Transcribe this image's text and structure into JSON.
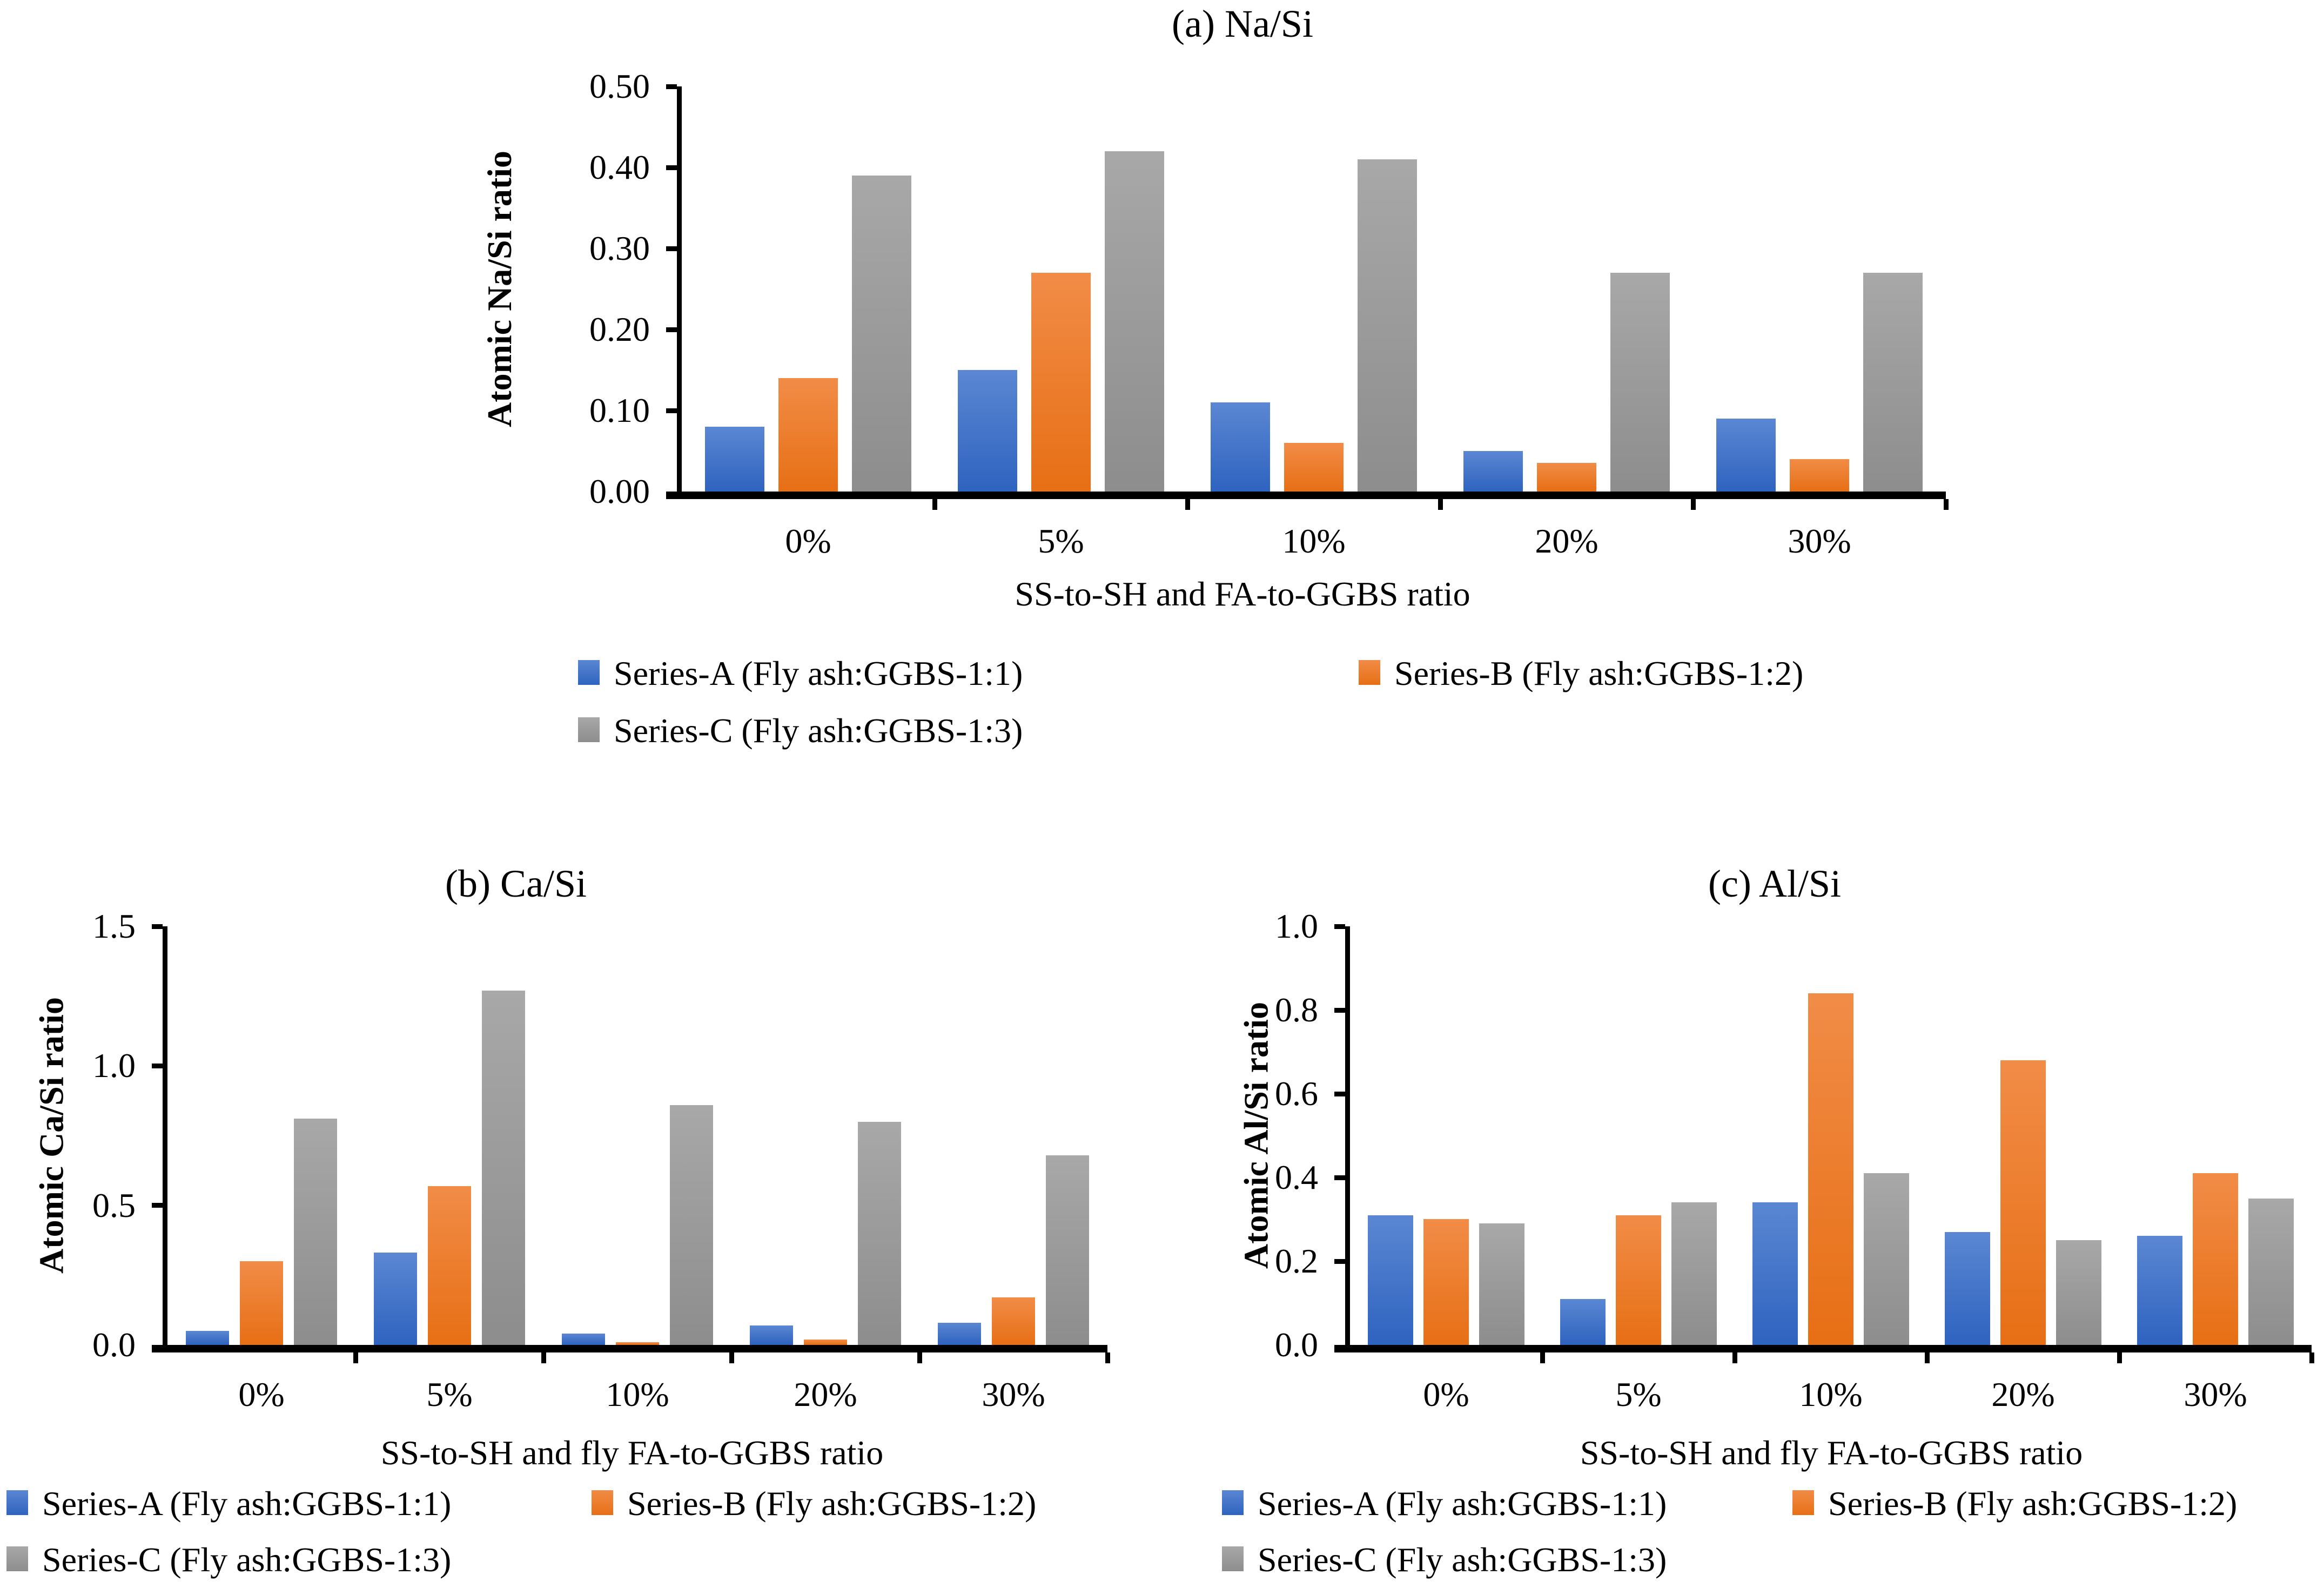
{
  "figure": {
    "background": "#ffffff",
    "text_color": "#000000",
    "series_colors": {
      "series_a": {
        "top": "#5b87d3",
        "bottom": "#2e63bf"
      },
      "series_b": {
        "top": "#f18c47",
        "bottom": "#e76f15"
      },
      "series_c": {
        "top": "#a8a8a8",
        "bottom": "#8d8d8d"
      }
    }
  },
  "chart_data": [
    {
      "type": "bar",
      "panel": "a",
      "title": "(a) Na/Si",
      "xlabel": "SS-to-SH and FA-to-GGBS ratio",
      "ylabel": "Atomic Na/Si ratio",
      "categories": [
        "0%",
        "5%",
        "10%",
        "20%",
        "30%"
      ],
      "y_ticks": [
        "0.00",
        "0.10",
        "0.20",
        "0.30",
        "0.40",
        "0.50"
      ],
      "ylim": [
        0,
        0.5
      ],
      "grid": false,
      "legend_position": "below",
      "series": [
        {
          "name": "Series-A (Fly ash:GGBS-1:1)",
          "color_key": "series_a",
          "values": [
            0.08,
            0.15,
            0.11,
            0.05,
            0.09
          ]
        },
        {
          "name": "Series-B (Fly ash:GGBS-1:2)",
          "color_key": "series_b",
          "values": [
            0.14,
            0.27,
            0.06,
            0.035,
            0.04
          ]
        },
        {
          "name": "Series-C (Fly ash:GGBS-1:3)",
          "color_key": "series_c",
          "values": [
            0.39,
            0.42,
            0.41,
            0.27,
            0.27
          ]
        }
      ]
    },
    {
      "type": "bar",
      "panel": "b",
      "title": "(b) Ca/Si",
      "xlabel": "SS-to-SH and fly FA-to-GGBS ratio",
      "ylabel": "Atomic Ca/Si ratio",
      "categories": [
        "0%",
        "5%",
        "10%",
        "20%",
        "30%"
      ],
      "y_ticks": [
        "0.0",
        "0.5",
        "1.0",
        "1.5"
      ],
      "ylim": [
        0,
        1.5
      ],
      "grid": false,
      "legend_position": "below",
      "series": [
        {
          "name": "Series-A (Fly ash:GGBS-1:1)",
          "color_key": "series_a",
          "values": [
            0.05,
            0.33,
            0.04,
            0.07,
            0.08
          ]
        },
        {
          "name": "Series-B (Fly ash:GGBS-1:2)",
          "color_key": "series_b",
          "values": [
            0.3,
            0.57,
            0.01,
            0.02,
            0.17
          ]
        },
        {
          "name": "Series-C (Fly ash:GGBS-1:3)",
          "color_key": "series_c",
          "values": [
            0.81,
            1.27,
            0.86,
            0.8,
            0.68
          ]
        }
      ]
    },
    {
      "type": "bar",
      "panel": "c",
      "title": "(c) Al/Si",
      "xlabel": "SS-to-SH and fly FA-to-GGBS ratio",
      "ylabel": "Atomic Al/Si ratio",
      "categories": [
        "0%",
        "5%",
        "10%",
        "20%",
        "30%"
      ],
      "y_ticks": [
        "0.0",
        "0.2",
        "0.4",
        "0.6",
        "0.8",
        "1.0"
      ],
      "ylim": [
        0,
        1.0
      ],
      "grid": false,
      "legend_position": "below",
      "series": [
        {
          "name": "Series-A (Fly ash:GGBS-1:1)",
          "color_key": "series_a",
          "values": [
            0.31,
            0.11,
            0.34,
            0.27,
            0.26
          ]
        },
        {
          "name": "Series-B (Fly ash:GGBS-1:2)",
          "color_key": "series_b",
          "values": [
            0.3,
            0.31,
            0.84,
            0.68,
            0.41
          ]
        },
        {
          "name": "Series-C (Fly ash:GGBS-1:3)",
          "color_key": "series_c",
          "values": [
            0.29,
            0.34,
            0.41,
            0.25,
            0.35
          ]
        }
      ]
    }
  ]
}
